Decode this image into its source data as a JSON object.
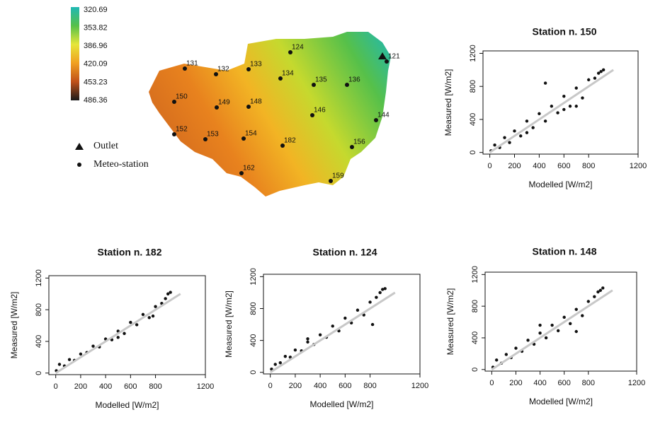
{
  "map": {
    "colorbar": {
      "ticks": [
        320.69,
        353.82,
        386.96,
        420.09,
        453.23,
        486.36
      ]
    },
    "legend": [
      "Outlet",
      "Meteo-station"
    ],
    "stations": [
      "131",
      "132",
      "133",
      "124",
      "121",
      "134",
      "135",
      "136",
      "150",
      "149",
      "148",
      "146",
      "144",
      "152",
      "153",
      "154",
      "182",
      "156",
      "162",
      "159"
    ]
  },
  "chart_data": [
    {
      "type": "scatter",
      "title": "Station n. 150",
      "x_label": "Modelled [W/m2]",
      "y_label": "Measured [W/m2]",
      "xlim": [
        -55,
        1200
      ],
      "ylim": [
        -20,
        1230
      ],
      "xticks": [
        0,
        200,
        400,
        600,
        800,
        1200
      ],
      "yticks": [
        0,
        400,
        800,
        1200
      ],
      "color": "#111111",
      "reference_line": {
        "x": [
          0,
          1000
        ],
        "y": [
          0,
          1000
        ],
        "color": "#c8c8c8"
      },
      "x": [
        10,
        40,
        80,
        120,
        160,
        200,
        250,
        300,
        350,
        400,
        450,
        500,
        550,
        600,
        650,
        700,
        750,
        800,
        850,
        880,
        900,
        920,
        300,
        600,
        450,
        700
      ],
      "y": [
        20,
        90,
        60,
        180,
        120,
        260,
        200,
        380,
        300,
        470,
        380,
        560,
        480,
        680,
        560,
        780,
        660,
        880,
        900,
        960,
        980,
        1000,
        240,
        520,
        840,
        560
      ]
    },
    {
      "type": "scatter",
      "title": "Station n. 182",
      "x_label": "Modelled [W/m2]",
      "y_label": "Measured [W/m2]",
      "xlim": [
        -55,
        1200
      ],
      "ylim": [
        -20,
        1230
      ],
      "xticks": [
        0,
        200,
        400,
        600,
        800,
        1200
      ],
      "yticks": [
        0,
        400,
        800,
        1200
      ],
      "color": "#111111",
      "reference_line": {
        "x": [
          0,
          1000
        ],
        "y": [
          0,
          1000
        ],
        "color": "#c8c8c8"
      },
      "x": [
        5,
        30,
        70,
        110,
        150,
        200,
        250,
        300,
        350,
        400,
        450,
        500,
        550,
        600,
        650,
        700,
        750,
        800,
        850,
        880,
        900,
        920,
        500,
        780
      ],
      "y": [
        30,
        110,
        90,
        170,
        160,
        240,
        260,
        340,
        330,
        430,
        420,
        530,
        500,
        640,
        610,
        740,
        700,
        840,
        880,
        940,
        1000,
        1020,
        450,
        720
      ]
    },
    {
      "type": "scatter",
      "title": "Station n. 124",
      "x_label": "Modelled [W/m2]",
      "y_label": "Measured [W/m2]",
      "xlim": [
        -55,
        1200
      ],
      "ylim": [
        -20,
        1230
      ],
      "xticks": [
        0,
        200,
        400,
        600,
        800,
        1200
      ],
      "yticks": [
        0,
        400,
        800,
        1200
      ],
      "color": "#111111",
      "reference_line": {
        "x": [
          0,
          1000
        ],
        "y": [
          0,
          1000
        ],
        "color": "#c8c8c8"
      },
      "x": [
        10,
        40,
        80,
        120,
        160,
        200,
        250,
        300,
        350,
        400,
        450,
        500,
        550,
        600,
        650,
        700,
        750,
        800,
        850,
        880,
        900,
        920,
        820,
        300
      ],
      "y": [
        40,
        100,
        120,
        200,
        190,
        280,
        270,
        380,
        350,
        470,
        440,
        580,
        520,
        680,
        620,
        780,
        720,
        880,
        940,
        1000,
        1040,
        1050,
        600,
        420
      ]
    },
    {
      "type": "scatter",
      "title": "Station n. 148",
      "x_label": "Modelled [W/m2]",
      "y_label": "Measured [W/m2]",
      "xlim": [
        -55,
        1200
      ],
      "ylim": [
        -20,
        1230
      ],
      "xticks": [
        0,
        200,
        400,
        600,
        800,
        1200
      ],
      "yticks": [
        0,
        400,
        800,
        1200
      ],
      "color": "#111111",
      "reference_line": {
        "x": [
          0,
          1000
        ],
        "y": [
          0,
          1000
        ],
        "color": "#c8c8c8"
      },
      "x": [
        10,
        40,
        80,
        120,
        160,
        200,
        250,
        300,
        350,
        400,
        450,
        500,
        550,
        600,
        650,
        700,
        750,
        800,
        850,
        880,
        900,
        920,
        700,
        400
      ],
      "y": [
        30,
        120,
        80,
        190,
        150,
        270,
        230,
        370,
        320,
        460,
        400,
        560,
        490,
        660,
        580,
        760,
        680,
        860,
        920,
        980,
        1000,
        1030,
        480,
        560
      ]
    }
  ]
}
